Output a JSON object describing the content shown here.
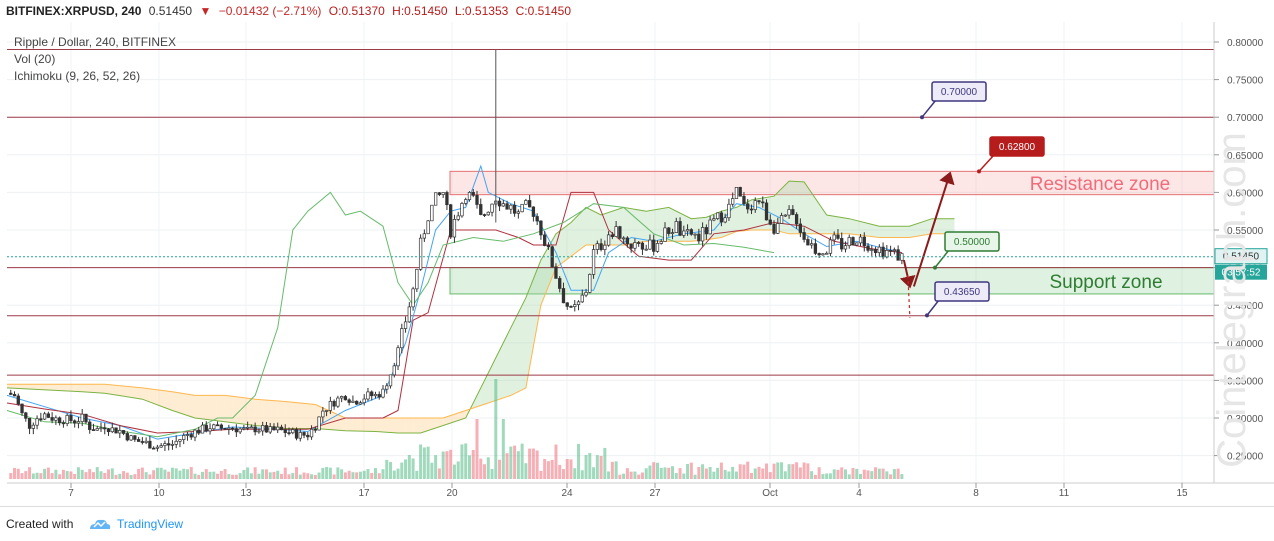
{
  "header": {
    "symbol": "BITFINEX:XRPUSD, 240",
    "last": "0.51450",
    "change": "−0.01432 (−2.71%)",
    "open": "O:0.51370",
    "high": "H:0.51450",
    "low": "L:0.51353",
    "close": "C:0.51450"
  },
  "legend": {
    "title": "Ripple / Dollar, 240, BITFINEX",
    "vol": "Vol (20)",
    "ichimoku": "Ichimoku (9, 26, 52, 26)"
  },
  "footer": {
    "created_with": "Created with",
    "brand": "TradingView"
  },
  "watermark": "Cointelegraph.com",
  "colors": {
    "up": "#53b987",
    "down": "#eb4d5c",
    "resistance": "#e57373",
    "support": "#66bb6a",
    "hline": "#9c3a48"
  },
  "chart_data": {
    "type": "candlestick",
    "y_ticks": [
      "0.80000",
      "0.75000",
      "0.70000",
      "0.65000",
      "0.60000",
      "0.55000",
      "0.50000",
      "0.45000",
      "0.40000",
      "0.35000",
      "0.30000",
      "0.25000"
    ],
    "x_ticks": [
      "7",
      "10",
      "13",
      "17",
      "20",
      "24",
      "27",
      "Oct",
      "4",
      "8",
      "11",
      "15"
    ],
    "ylim": [
      0.215,
      0.81
    ],
    "current_price": "0.51450",
    "countdown": "03:57:52",
    "horizontal_lines": [
      0.79,
      0.7,
      0.5,
      0.436,
      0.357
    ],
    "zones": [
      {
        "label": "Resistance zone",
        "from": 0.597,
        "to": 0.628
      },
      {
        "label": "Support zone",
        "from": 0.465,
        "to": 0.5
      }
    ],
    "callouts": [
      "0.70000",
      "0.62800",
      "0.50000",
      "0.43650"
    ],
    "close_path": [
      [
        0,
        0.333
      ],
      [
        2,
        0.33
      ],
      [
        4,
        0.305
      ],
      [
        6,
        0.29
      ],
      [
        8,
        0.3
      ],
      [
        10,
        0.305
      ],
      [
        12,
        0.3
      ],
      [
        14,
        0.298
      ],
      [
        16,
        0.298
      ],
      [
        18,
        0.296
      ],
      [
        20,
        0.3
      ],
      [
        22,
        0.288
      ],
      [
        24,
        0.285
      ],
      [
        26,
        0.29
      ],
      [
        28,
        0.285
      ],
      [
        30,
        0.283
      ],
      [
        32,
        0.276
      ],
      [
        34,
        0.27
      ],
      [
        36,
        0.268
      ],
      [
        38,
        0.265
      ],
      [
        40,
        0.262
      ],
      [
        42,
        0.264
      ],
      [
        44,
        0.265
      ],
      [
        46,
        0.272
      ],
      [
        48,
        0.278
      ],
      [
        50,
        0.282
      ],
      [
        52,
        0.285
      ],
      [
        54,
        0.288
      ],
      [
        56,
        0.286
      ],
      [
        58,
        0.287
      ],
      [
        60,
        0.287
      ],
      [
        62,
        0.285
      ],
      [
        64,
        0.283
      ],
      [
        66,
        0.286
      ],
      [
        68,
        0.285
      ],
      [
        70,
        0.283
      ],
      [
        72,
        0.284
      ],
      [
        74,
        0.282
      ],
      [
        76,
        0.28
      ],
      [
        78,
        0.277
      ],
      [
        80,
        0.278
      ],
      [
        82,
        0.29
      ],
      [
        84,
        0.31
      ],
      [
        86,
        0.318
      ],
      [
        88,
        0.325
      ],
      [
        90,
        0.33
      ],
      [
        92,
        0.322
      ],
      [
        94,
        0.325
      ],
      [
        96,
        0.33
      ],
      [
        98,
        0.33
      ],
      [
        100,
        0.335
      ],
      [
        102,
        0.36
      ],
      [
        104,
        0.39
      ],
      [
        106,
        0.43
      ],
      [
        108,
        0.47
      ],
      [
        110,
        0.53
      ],
      [
        112,
        0.57
      ],
      [
        114,
        0.59
      ],
      [
        116,
        0.6
      ],
      [
        118,
        0.55
      ],
      [
        120,
        0.575
      ],
      [
        122,
        0.6
      ],
      [
        124,
        0.59
      ],
      [
        126,
        0.565
      ],
      [
        128,
        0.58
      ],
      [
        130,
        0.595
      ],
      [
        132,
        0.585
      ],
      [
        134,
        0.58
      ],
      [
        136,
        0.57
      ],
      [
        138,
        0.58
      ],
      [
        140,
        0.575
      ],
      [
        142,
        0.55
      ],
      [
        144,
        0.52
      ],
      [
        146,
        0.49
      ],
      [
        148,
        0.46
      ],
      [
        150,
        0.44
      ],
      [
        152,
        0.45
      ],
      [
        154,
        0.47
      ],
      [
        156,
        0.52
      ],
      [
        158,
        0.53
      ],
      [
        160,
        0.545
      ],
      [
        162,
        0.55
      ],
      [
        164,
        0.54
      ],
      [
        166,
        0.53
      ],
      [
        168,
        0.535
      ],
      [
        170,
        0.525
      ],
      [
        172,
        0.53
      ],
      [
        174,
        0.54
      ],
      [
        176,
        0.55
      ],
      [
        178,
        0.555
      ],
      [
        180,
        0.54
      ],
      [
        182,
        0.545
      ],
      [
        184,
        0.54
      ],
      [
        186,
        0.55
      ],
      [
        188,
        0.56
      ],
      [
        190,
        0.57
      ],
      [
        192,
        0.58
      ],
      [
        194,
        0.6
      ],
      [
        196,
        0.58
      ],
      [
        198,
        0.585
      ],
      [
        200,
        0.59
      ],
      [
        202,
        0.57
      ],
      [
        204,
        0.555
      ],
      [
        206,
        0.56
      ],
      [
        208,
        0.57
      ],
      [
        210,
        0.565
      ],
      [
        212,
        0.54
      ],
      [
        214,
        0.53
      ],
      [
        216,
        0.52
      ],
      [
        218,
        0.525
      ],
      [
        220,
        0.535
      ],
      [
        222,
        0.53
      ],
      [
        224,
        0.535
      ],
      [
        226,
        0.54
      ],
      [
        228,
        0.535
      ],
      [
        230,
        0.53
      ],
      [
        232,
        0.525
      ],
      [
        234,
        0.522
      ],
      [
        236,
        0.518
      ],
      [
        238,
        0.514
      ]
    ],
    "tenkan": [
      [
        0,
        0.33
      ],
      [
        10,
        0.315
      ],
      [
        20,
        0.3
      ],
      [
        30,
        0.29
      ],
      [
        40,
        0.272
      ],
      [
        50,
        0.28
      ],
      [
        60,
        0.288
      ],
      [
        70,
        0.286
      ],
      [
        80,
        0.282
      ],
      [
        90,
        0.31
      ],
      [
        100,
        0.33
      ],
      [
        106,
        0.4
      ],
      [
        110,
        0.47
      ],
      [
        114,
        0.55
      ],
      [
        118,
        0.575
      ],
      [
        122,
        0.58
      ],
      [
        126,
        0.635
      ],
      [
        128,
        0.6
      ],
      [
        134,
        0.585
      ],
      [
        140,
        0.575
      ],
      [
        146,
        0.52
      ],
      [
        150,
        0.47
      ],
      [
        156,
        0.47
      ],
      [
        160,
        0.52
      ],
      [
        166,
        0.54
      ],
      [
        172,
        0.535
      ],
      [
        180,
        0.545
      ],
      [
        188,
        0.55
      ],
      [
        194,
        0.585
      ],
      [
        200,
        0.58
      ],
      [
        206,
        0.565
      ],
      [
        212,
        0.545
      ],
      [
        218,
        0.528
      ],
      [
        226,
        0.535
      ],
      [
        232,
        0.527
      ],
      [
        238,
        0.52
      ]
    ],
    "kijun": [
      [
        0,
        0.32
      ],
      [
        10,
        0.312
      ],
      [
        20,
        0.305
      ],
      [
        30,
        0.29
      ],
      [
        40,
        0.28
      ],
      [
        50,
        0.282
      ],
      [
        60,
        0.285
      ],
      [
        70,
        0.285
      ],
      [
        80,
        0.285
      ],
      [
        90,
        0.3
      ],
      [
        100,
        0.3
      ],
      [
        104,
        0.31
      ],
      [
        108,
        0.43
      ],
      [
        112,
        0.44
      ],
      [
        118,
        0.55
      ],
      [
        122,
        0.55
      ],
      [
        130,
        0.55
      ],
      [
        136,
        0.54
      ],
      [
        140,
        0.53
      ],
      [
        146,
        0.53
      ],
      [
        150,
        0.6
      ],
      [
        156,
        0.6
      ],
      [
        160,
        0.55
      ],
      [
        168,
        0.515
      ],
      [
        176,
        0.51
      ],
      [
        182,
        0.51
      ],
      [
        188,
        0.545
      ],
      [
        196,
        0.55
      ],
      [
        204,
        0.56
      ],
      [
        212,
        0.555
      ],
      [
        220,
        0.535
      ],
      [
        230,
        0.525
      ],
      [
        238,
        0.52
      ]
    ],
    "chikou": [
      [
        0,
        0.31
      ],
      [
        10,
        0.295
      ],
      [
        20,
        0.293
      ],
      [
        30,
        0.283
      ],
      [
        40,
        0.275
      ],
      [
        50,
        0.285
      ],
      [
        56,
        0.3
      ],
      [
        60,
        0.3
      ],
      [
        66,
        0.33
      ],
      [
        72,
        0.42
      ],
      [
        76,
        0.55
      ],
      [
        80,
        0.575
      ],
      [
        86,
        0.6
      ],
      [
        90,
        0.57
      ],
      [
        94,
        0.575
      ],
      [
        100,
        0.555
      ],
      [
        104,
        0.48
      ],
      [
        108,
        0.45
      ],
      [
        112,
        0.48
      ],
      [
        116,
        0.53
      ],
      [
        124,
        0.54
      ],
      [
        132,
        0.535
      ],
      [
        140,
        0.545
      ],
      [
        148,
        0.56
      ],
      [
        156,
        0.585
      ],
      [
        164,
        0.58
      ],
      [
        172,
        0.545
      ],
      [
        180,
        0.53
      ],
      [
        188,
        0.532
      ],
      [
        196,
        0.527
      ],
      [
        204,
        0.52
      ]
    ],
    "span_a": [
      [
        0,
        0.34
      ],
      [
        20,
        0.335
      ],
      [
        26,
        0.333
      ],
      [
        36,
        0.325
      ],
      [
        44,
        0.31
      ],
      [
        50,
        0.3
      ],
      [
        58,
        0.295
      ],
      [
        66,
        0.29
      ],
      [
        74,
        0.286
      ],
      [
        82,
        0.286
      ],
      [
        90,
        0.283
      ],
      [
        98,
        0.282
      ],
      [
        104,
        0.28
      ],
      [
        110,
        0.28
      ],
      [
        116,
        0.29
      ],
      [
        122,
        0.3
      ],
      [
        128,
        0.36
      ],
      [
        134,
        0.42
      ],
      [
        138,
        0.46
      ],
      [
        142,
        0.51
      ],
      [
        146,
        0.545
      ],
      [
        150,
        0.56
      ],
      [
        154,
        0.58
      ],
      [
        158,
        0.57
      ],
      [
        164,
        0.58
      ],
      [
        170,
        0.575
      ],
      [
        176,
        0.58
      ],
      [
        182,
        0.565
      ],
      [
        186,
        0.567
      ],
      [
        190,
        0.575
      ],
      [
        194,
        0.58
      ],
      [
        198,
        0.59
      ],
      [
        204,
        0.595
      ],
      [
        208,
        0.615
      ],
      [
        212,
        0.614
      ],
      [
        218,
        0.57
      ],
      [
        224,
        0.565
      ],
      [
        232,
        0.555
      ],
      [
        240,
        0.555
      ],
      [
        246,
        0.565
      ],
      [
        252,
        0.565
      ]
    ],
    "span_b": [
      [
        0,
        0.345
      ],
      [
        20,
        0.345
      ],
      [
        26,
        0.345
      ],
      [
        36,
        0.34
      ],
      [
        44,
        0.335
      ],
      [
        50,
        0.33
      ],
      [
        58,
        0.33
      ],
      [
        66,
        0.325
      ],
      [
        74,
        0.322
      ],
      [
        82,
        0.318
      ],
      [
        90,
        0.3
      ],
      [
        98,
        0.3
      ],
      [
        104,
        0.3
      ],
      [
        110,
        0.3
      ],
      [
        116,
        0.3
      ],
      [
        122,
        0.31
      ],
      [
        128,
        0.32
      ],
      [
        134,
        0.33
      ],
      [
        138,
        0.34
      ],
      [
        142,
        0.45
      ],
      [
        146,
        0.5
      ],
      [
        150,
        0.515
      ],
      [
        154,
        0.53
      ],
      [
        158,
        0.53
      ],
      [
        164,
        0.53
      ],
      [
        170,
        0.535
      ],
      [
        176,
        0.535
      ],
      [
        182,
        0.535
      ],
      [
        186,
        0.537
      ],
      [
        190,
        0.54
      ],
      [
        194,
        0.548
      ],
      [
        198,
        0.55
      ],
      [
        204,
        0.55
      ],
      [
        208,
        0.545
      ],
      [
        212,
        0.545
      ],
      [
        218,
        0.545
      ],
      [
        224,
        0.545
      ],
      [
        232,
        0.54
      ],
      [
        240,
        0.54
      ],
      [
        246,
        0.545
      ],
      [
        252,
        0.545
      ]
    ],
    "spike_high": 0.79,
    "projection": {
      "down_to": 0.475,
      "up_to": 0.628,
      "dip_to": 0.436
    }
  }
}
